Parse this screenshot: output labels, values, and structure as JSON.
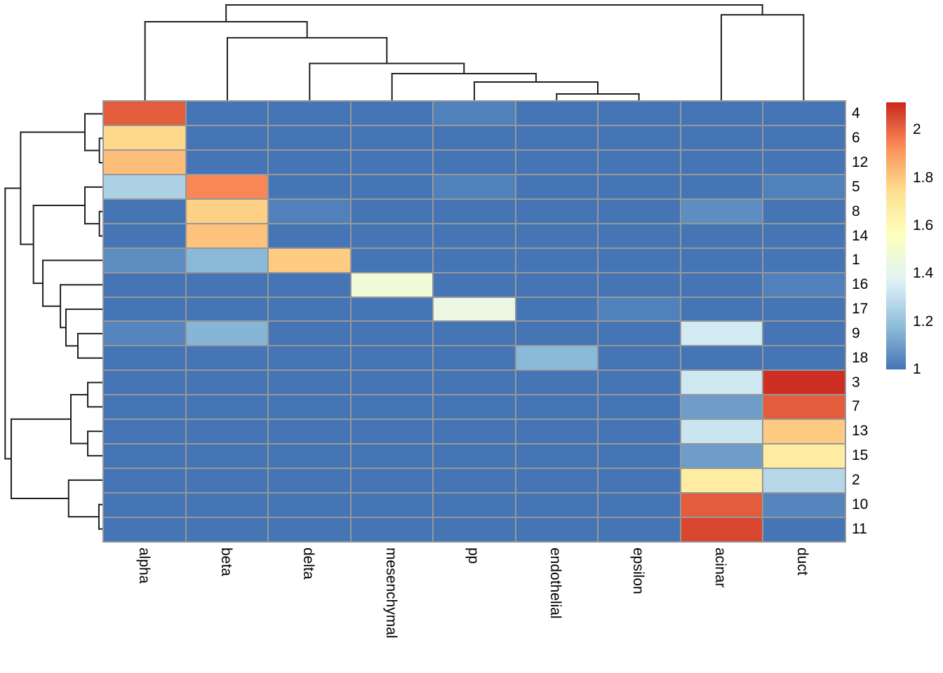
{
  "chart_data": {
    "type": "heatmap",
    "title": "",
    "columns": [
      "alpha",
      "beta",
      "delta",
      "mesenchymal",
      "pp",
      "endothelial",
      "epsilon",
      "acinar",
      "duct"
    ],
    "rows": [
      "4",
      "6",
      "12",
      "5",
      "8",
      "14",
      "1",
      "16",
      "17",
      "9",
      "18",
      "3",
      "7",
      "13",
      "15",
      "2",
      "10",
      "11"
    ],
    "values": [
      [
        2.02,
        1.0,
        1.0,
        1.0,
        1.03,
        1.0,
        1.0,
        1.0,
        1.0
      ],
      [
        1.76,
        1.0,
        1.0,
        1.0,
        1.0,
        1.0,
        1.0,
        1.0,
        1.0
      ],
      [
        1.82,
        1.0,
        1.0,
        1.0,
        1.0,
        1.0,
        1.0,
        1.0,
        1.0
      ],
      [
        1.25,
        1.94,
        1.0,
        1.0,
        1.03,
        1.0,
        1.0,
        1.0,
        1.03
      ],
      [
        1.0,
        1.78,
        1.03,
        1.0,
        1.0,
        1.0,
        1.0,
        1.06,
        1.0
      ],
      [
        1.0,
        1.81,
        1.0,
        1.0,
        1.0,
        1.0,
        1.0,
        1.0,
        1.0
      ],
      [
        1.06,
        1.17,
        1.79,
        1.0,
        1.0,
        1.0,
        1.0,
        1.0,
        1.0
      ],
      [
        1.0,
        1.0,
        1.0,
        1.48,
        1.0,
        1.0,
        1.0,
        1.0,
        1.03
      ],
      [
        1.0,
        1.0,
        1.0,
        1.0,
        1.44,
        1.0,
        1.03,
        1.0,
        1.0
      ],
      [
        1.04,
        1.16,
        1.0,
        1.0,
        1.0,
        1.0,
        1.0,
        1.34,
        1.0
      ],
      [
        1.0,
        1.0,
        1.0,
        1.0,
        1.0,
        1.17,
        1.0,
        1.0,
        1.0
      ],
      [
        1.0,
        1.0,
        1.0,
        1.0,
        1.0,
        1.0,
        1.0,
        1.33,
        2.1
      ],
      [
        1.0,
        1.0,
        1.0,
        1.0,
        1.0,
        1.0,
        1.0,
        1.1,
        2.02
      ],
      [
        1.0,
        1.0,
        1.0,
        1.0,
        1.0,
        1.0,
        1.0,
        1.32,
        1.79
      ],
      [
        1.0,
        1.0,
        1.0,
        1.0,
        1.0,
        1.0,
        1.0,
        1.1,
        1.67
      ],
      [
        1.0,
        1.0,
        1.0,
        1.0,
        1.0,
        1.0,
        1.0,
        1.67,
        1.27
      ],
      [
        1.0,
        1.0,
        1.0,
        1.0,
        1.0,
        1.0,
        1.0,
        2.02,
        1.04
      ],
      [
        1.0,
        1.0,
        1.0,
        1.0,
        1.0,
        1.0,
        1.0,
        2.06,
        1.0
      ]
    ],
    "color_scale": {
      "stops": [
        "#4575b4",
        "#91bfdb",
        "#e0f3f8",
        "#ffffbf",
        "#fee090",
        "#fc8d59",
        "#c9281d"
      ],
      "domain": [
        1.0,
        2.115
      ],
      "legend_tick_labels": [
        "2",
        "1.8",
        "1.6",
        "1.4",
        "1.2",
        "1"
      ],
      "legend_tick_values": [
        2.0,
        1.8,
        1.6,
        1.4,
        1.2,
        1.0
      ]
    },
    "grid_color": "#96989a",
    "dendrogram_color": "#1f1f1f",
    "col_dendrogram": {
      "h": 1.0,
      "c": [
        {
          "h": 0.826,
          "c": [
            "alpha",
            {
              "h": 0.66,
              "c": [
                "beta",
                {
                  "h": 0.395,
                  "c": [
                    "delta",
                    {
                      "h": 0.29,
                      "c": [
                        "mesenchymal",
                        {
                          "h": 0.203,
                          "c": [
                            "pp",
                            {
                              "h": 0.08,
                              "c": [
                                "endothelial",
                                "epsilon"
                              ]
                            }
                          ]
                        }
                      ]
                    }
                  ]
                }
              ]
            }
          ]
        },
        {
          "h": 0.898,
          "c": [
            "acinar",
            "duct"
          ]
        }
      ]
    },
    "row_dendrogram": {
      "h": 1.0,
      "c": [
        {
          "h": 0.843,
          "c": [
            {
              "h": 0.192,
              "c": [
                "4",
                {
                  "h": 0.045,
                  "c": [
                    "6",
                    "12"
                  ]
                }
              ]
            },
            {
              "h": 0.713,
              "c": [
                {
                  "h": 0.192,
                  "c": [
                    "5",
                    {
                      "h": 0.045,
                      "c": [
                        "8",
                        "14"
                      ]
                    }
                  ]
                },
                {
                  "h": 0.618,
                  "c": [
                    "1",
                    {
                      "h": 0.44,
                      "c": [
                        "16",
                        {
                          "h": 0.384,
                          "c": [
                            "17",
                            {
                              "h": 0.263,
                              "c": [
                                "9",
                                "18"
                              ]
                            }
                          ]
                        }
                      ]
                    }
                  ]
                }
              ]
            }
          ]
        },
        {
          "h": 0.938,
          "c": [
            {
              "h": 0.334,
              "c": [
                {
                  "h": 0.163,
                  "c": [
                    "3",
                    "7"
                  ]
                },
                {
                  "h": 0.163,
                  "c": [
                    "13",
                    "15"
                  ]
                }
              ]
            },
            {
              "h": 0.357,
              "c": [
                "2",
                {
                  "h": 0.05,
                  "c": [
                    "10",
                    "11"
                  ]
                }
              ]
            }
          ]
        }
      ]
    }
  }
}
